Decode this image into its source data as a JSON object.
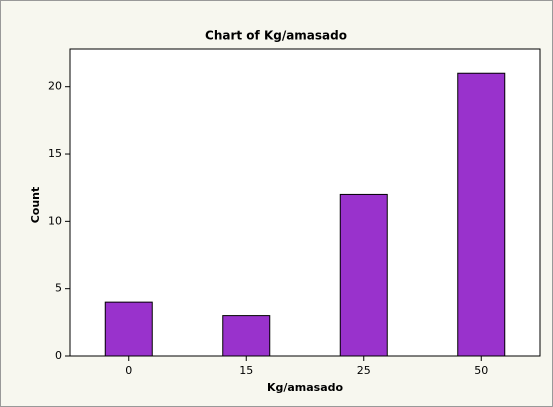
{
  "chart_data": {
    "type": "bar",
    "title": "Chart of Kg/amasado",
    "x_label": "Kg/amasado",
    "y_label": "Count",
    "categories": [
      "0",
      "15",
      "25",
      "50"
    ],
    "values": [
      4,
      3,
      12,
      21
    ],
    "color": "#9932cc",
    "ylim": [
      0,
      22.8
    ],
    "yticks": [
      0,
      5,
      10,
      15,
      20
    ]
  }
}
